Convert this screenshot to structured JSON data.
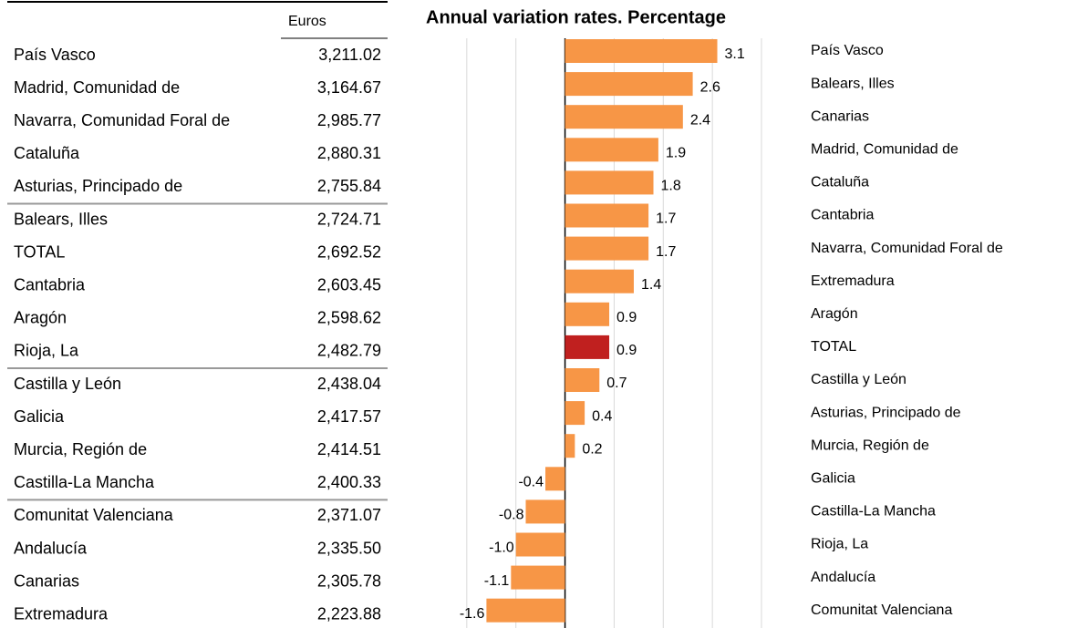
{
  "table": {
    "header": "Euros",
    "rows": [
      [
        "País Vasco",
        "3,211.02"
      ],
      [
        "Madrid, Comunidad de",
        "3,164.67"
      ],
      [
        "Navarra, Comunidad Foral de",
        "2,985.77"
      ],
      [
        "Cataluña",
        "2,880.31"
      ],
      [
        "Asturias, Principado de",
        "2,755.84"
      ],
      [
        "Balears, Illes",
        "2,724.71"
      ],
      [
        "TOTAL",
        "2,692.52"
      ],
      [
        "Cantabria",
        "2,603.45"
      ],
      [
        "Aragón",
        "2,598.62"
      ],
      [
        "Rioja, La",
        "2,482.79"
      ],
      [
        "Castilla y León",
        "2,438.04"
      ],
      [
        "Galicia",
        "2,417.57"
      ],
      [
        "Murcia, Región de",
        "2,414.51"
      ],
      [
        "Castilla-La Mancha",
        "2,400.33"
      ],
      [
        "Comunitat Valenciana",
        "2,371.07"
      ],
      [
        "Andalucía",
        "2,335.50"
      ],
      [
        "Canarias",
        "2,305.78"
      ],
      [
        "Extremadura",
        "2,223.88"
      ]
    ]
  },
  "chart_data": {
    "type": "hbar",
    "title": "Annual variation rates. Percentage",
    "categories": [
      "País Vasco",
      "Balears, Illes",
      "Canarias",
      "Madrid, Comunidad de",
      "Cataluña",
      "Cantabria",
      "Navarra, Comunidad Foral de",
      "Extremadura",
      "Aragón",
      "TOTAL",
      "Castilla y León",
      "Asturias, Principado de",
      "Murcia, Región de",
      "Galicia",
      "Castilla-La Mancha",
      "Rioja, La",
      "Andalucía",
      "Comunitat Valenciana"
    ],
    "values": [
      3.1,
      2.6,
      2.4,
      1.9,
      1.8,
      1.7,
      1.7,
      1.4,
      0.9,
      0.9,
      0.7,
      0.4,
      0.2,
      -0.4,
      -0.8,
      -1.0,
      -1.1,
      -1.6
    ],
    "value_labels": [
      "3.1",
      "2.6",
      "2.4",
      "1.9",
      "1.8",
      "1.7",
      "1.7",
      "1.4",
      "0.9",
      "0.9",
      "0.7",
      "0.4",
      "0.2",
      "-0.4",
      "-0.8",
      "-1.0",
      "-1.1",
      "-1.6"
    ],
    "colors": [
      "#f79646",
      "#f79646",
      "#f79646",
      "#f79646",
      "#f79646",
      "#f79646",
      "#f79646",
      "#f79646",
      "#f79646",
      "#c0201f",
      "#f79646",
      "#f79646",
      "#f79646",
      "#f79646",
      "#f79646",
      "#f79646",
      "#f79646",
      "#f79646"
    ],
    "xlim": [
      -3,
      4
    ],
    "xticks": [
      -2,
      -1,
      0,
      1,
      2,
      3,
      4
    ],
    "grid": true
  }
}
